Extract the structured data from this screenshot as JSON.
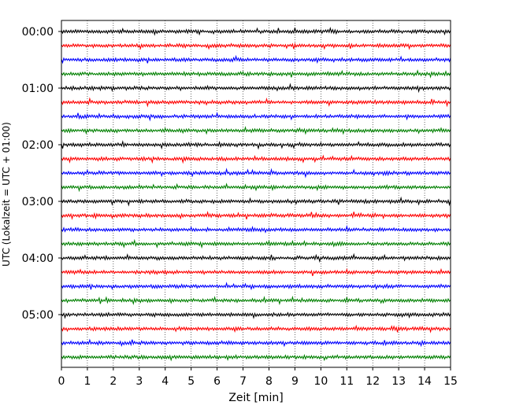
{
  "chart_data": {
    "type": "line",
    "title": "",
    "xlabel": "Zeit  [min]",
    "ylabel": "UTC (Lokalzeit = UTC + 01:00)",
    "xlim": [
      0,
      15
    ],
    "xticks": [
      0,
      1,
      2,
      3,
      4,
      5,
      6,
      7,
      8,
      9,
      10,
      11,
      12,
      13,
      14,
      15
    ],
    "xtick_labels": [
      "0",
      "1",
      "2",
      "3",
      "4",
      "5",
      "6",
      "7",
      "8",
      "9",
      "10",
      "11",
      "12",
      "13",
      "14",
      "15"
    ],
    "yticks_minutes": [
      0,
      60,
      120,
      180,
      240,
      300
    ],
    "ytick_labels": [
      "00:00",
      "01:00",
      "02:00",
      "03:00",
      "04:00",
      "05:00"
    ],
    "trace_interval_min": 15,
    "trace_count": 24,
    "trace_color_cycle": [
      "#000000",
      "#ff0000",
      "#0000ff",
      "#008000"
    ],
    "vertical_grid": "dotted",
    "legend": "none"
  }
}
